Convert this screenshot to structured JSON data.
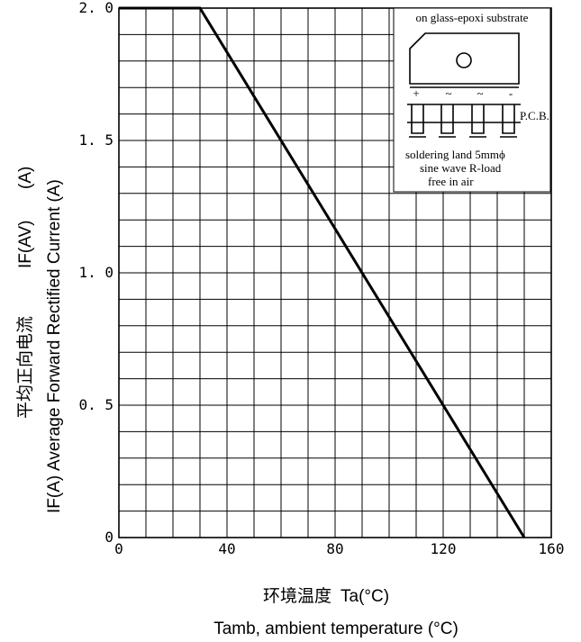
{
  "chart_data": {
    "type": "line",
    "x_ticks": [
      "0",
      "40",
      "80",
      "120",
      "160"
    ],
    "y_ticks": [
      "0",
      "0. 5",
      "1. 0",
      "1. 5",
      "2. 0"
    ],
    "xlim": [
      0,
      160
    ],
    "ylim": [
      0,
      2.0
    ],
    "grid": true,
    "series": [
      {
        "x": [
          0,
          30,
          150
        ],
        "y": [
          2.0,
          2.0,
          0
        ],
        "color": "#000000"
      }
    ],
    "xlabel_cn": "环境温度",
    "xlabel_cn_unit": "Ta(°C)",
    "xlabel": "Tamb, ambient temperature (°C)",
    "ylabel": "Average Forward Rectified Current (A)",
    "ylabel_prefix": "IF(A)",
    "ylabel_cn": "平均正向电流",
    "ylabel_cn_symbol": "IF(AV)",
    "ylabel_cn_unit": "(A)",
    "inset": {
      "title": "on glass-epoxi substrate",
      "pins": [
        "+",
        "~",
        "~",
        "-"
      ],
      "pcb_label": "P.C.B.",
      "notes": [
        "soldering land 5mmϕ",
        "sine wave R-load",
        "free in air"
      ]
    }
  }
}
